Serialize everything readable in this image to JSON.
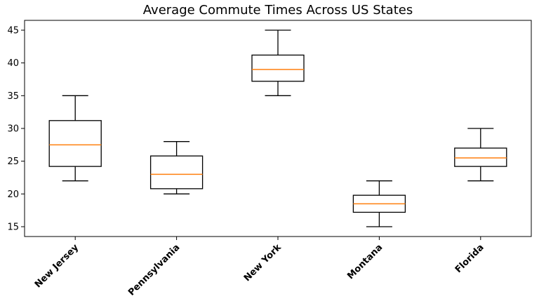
{
  "chart_data": {
    "type": "boxplot",
    "title": "Average Commute Times Across US States",
    "xlabel": "",
    "ylabel": "",
    "ylim": [
      13.5,
      46.5
    ],
    "yticks": [
      15,
      20,
      25,
      30,
      35,
      40,
      45
    ],
    "grid": false,
    "categories": [
      "New Jersey",
      "Pennsylvania",
      "New York",
      "Montana",
      "Florida"
    ],
    "boxes": [
      {
        "min": 22,
        "q1": 24.2,
        "median": 27.5,
        "q3": 31.2,
        "max": 35
      },
      {
        "min": 20,
        "q1": 20.8,
        "median": 23,
        "q3": 25.8,
        "max": 28
      },
      {
        "min": 35,
        "q1": 37.2,
        "median": 39,
        "q3": 41.2,
        "max": 45
      },
      {
        "min": 15,
        "q1": 17.2,
        "median": 18.5,
        "q3": 19.8,
        "max": 22
      },
      {
        "min": 22,
        "q1": 24.2,
        "median": 25.5,
        "q3": 27,
        "max": 30
      }
    ],
    "box_color": "#000000",
    "median_color": "#ff7f0e"
  }
}
